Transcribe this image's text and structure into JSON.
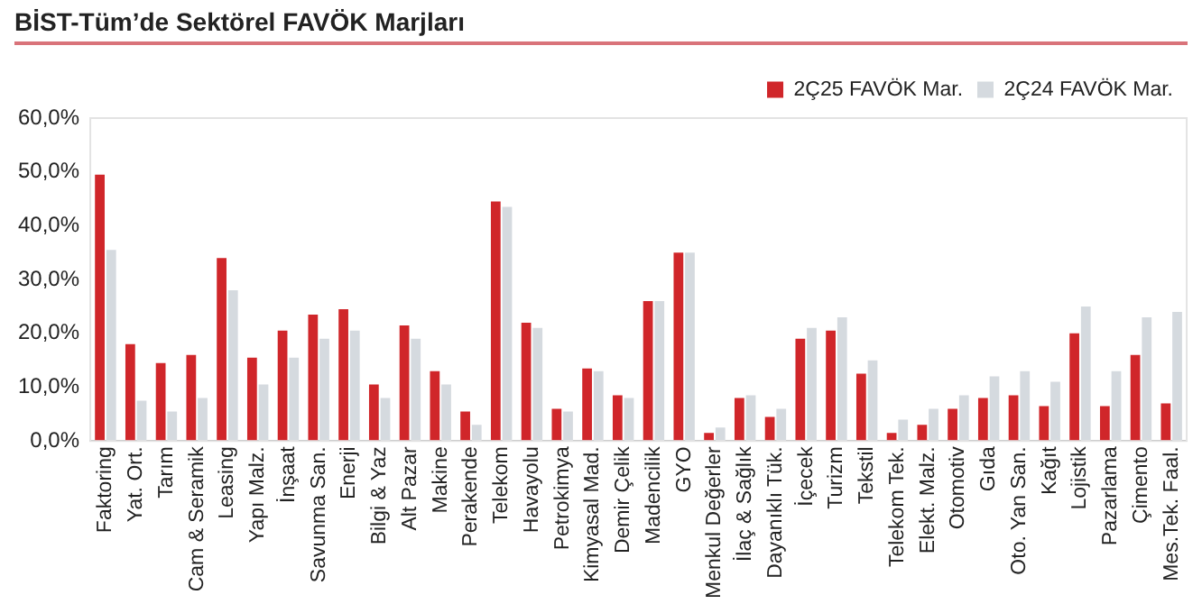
{
  "chart_data": {
    "type": "bar",
    "title": "BİST-Tüm’de Sektörel FAVÖK Marjları",
    "categories": [
      "Faktoring",
      "Yat. Ort.",
      "Tarım",
      "Cam & Seramik",
      "Leasing",
      "Yapı Malz.",
      "İnşaat",
      "Savunma San.",
      "Enerji",
      "Bilgi & Yaz",
      "Alt Pazar",
      "Makine",
      "Perakende",
      "Telekom",
      "Havayolu",
      "Petrokimya",
      "Kimyasal Mad.",
      "Demir Çelik",
      "Madencilik",
      "GYO",
      "Menkul Değerler",
      "İlaç & Sağlık",
      "Dayanıklı Tük.",
      "İçecek",
      "Turizm",
      "Tekstil",
      "Telekom Tek.",
      "Elekt. Malz.",
      "Otomotiv",
      "Gıda",
      "Oto. Yan San.",
      "Kağıt",
      "Lojistik",
      "Pazarlama",
      "Çimento",
      "Mes.Tek. Faal."
    ],
    "series": [
      {
        "name": "2Ç25 FAVÖK Mar.",
        "color": "#d0262a",
        "values": [
          49.5,
          18,
          14.5,
          16,
          34,
          15.5,
          20.5,
          23.5,
          24.5,
          10.5,
          21.5,
          13,
          5.5,
          44.5,
          22,
          6,
          13.5,
          8.5,
          26,
          35,
          1.5,
          8,
          4.5,
          19,
          20.5,
          12.5,
          1.5,
          3,
          6,
          8,
          8.5,
          6.5,
          20,
          6.5,
          16,
          7
        ]
      },
      {
        "name": "2Ç24 FAVÖK Mar.",
        "color": "#d5dadf",
        "values": [
          35.5,
          7.5,
          5.5,
          8,
          28,
          10.5,
          15.5,
          19,
          20.5,
          8,
          19,
          10.5,
          3,
          43.5,
          21,
          5.5,
          13,
          8,
          26,
          35,
          2.5,
          8.5,
          6,
          21,
          23,
          15,
          4,
          6,
          8.5,
          12,
          13,
          11,
          25,
          13,
          23,
          24
        ]
      }
    ],
    "ylim": [
      0,
      60
    ],
    "yticks": [
      {
        "value": 0,
        "label": "0,0%"
      },
      {
        "value": 10,
        "label": "10,0%"
      },
      {
        "value": 20,
        "label": "20,0%"
      },
      {
        "value": 30,
        "label": "30,0%"
      },
      {
        "value": 40,
        "label": "40,0%"
      },
      {
        "value": 50,
        "label": "50,0%"
      },
      {
        "value": 60,
        "label": "60,0%"
      }
    ],
    "grid": false,
    "legend": "top right"
  }
}
